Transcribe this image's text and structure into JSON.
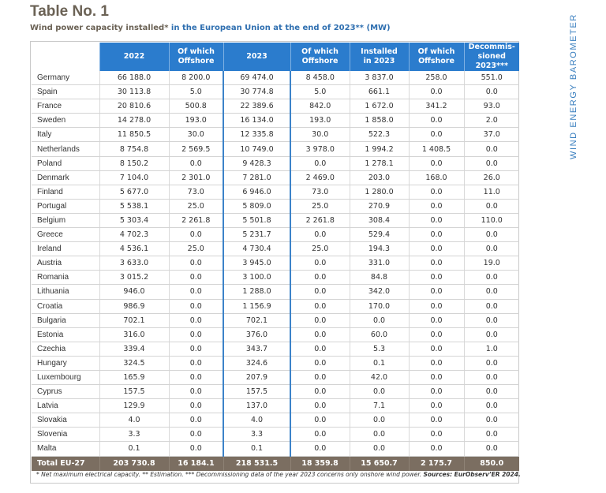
{
  "header": {
    "title": "Table No. 1",
    "subtitle_start": "Wind power capacity installed*",
    "subtitle_highlight": " in the European Union at the end of 2023** (MW)"
  },
  "sidebar_label": "WIND ENERGY BAROMETER",
  "columns": {
    "c2022": "2022",
    "off1_a": "Of which",
    "off1_b": "Offshore",
    "c2023": "2023",
    "off2_a": "Of which",
    "off2_b": "Offshore",
    "inst_a": "Installed",
    "inst_b": "in 2023",
    "off3_a": "Of which",
    "off3_b": "Offshore",
    "dec_a": "Decommis-",
    "dec_b": "sioned 2023***"
  },
  "rows": [
    {
      "country": "Germany",
      "v2022": "66 188.0",
      "off2022": "8 200.0",
      "v2023": "69 474.0",
      "off2023": "8 458.0",
      "installed": "3 837.0",
      "offInst": "258.0",
      "decom": "551.0"
    },
    {
      "country": "Spain",
      "v2022": "30 113.8",
      "off2022": "5.0",
      "v2023": "30 774.8",
      "off2023": "5.0",
      "installed": "661.1",
      "offInst": "0.0",
      "decom": "0.0"
    },
    {
      "country": "France",
      "v2022": "20 810.6",
      "off2022": "500.8",
      "v2023": "22 389.6",
      "off2023": "842.0",
      "installed": "1 672.0",
      "offInst": "341.2",
      "decom": "93.0"
    },
    {
      "country": "Sweden",
      "v2022": "14 278.0",
      "off2022": "193.0",
      "v2023": "16 134.0",
      "off2023": "193.0",
      "installed": "1 858.0",
      "offInst": "0.0",
      "decom": "2.0"
    },
    {
      "country": "Italy",
      "v2022": "11 850.5",
      "off2022": "30.0",
      "v2023": "12 335.8",
      "off2023": "30.0",
      "installed": "522.3",
      "offInst": "0.0",
      "decom": "37.0"
    },
    {
      "country": "Netherlands",
      "v2022": "8 754.8",
      "off2022": "2 569.5",
      "v2023": "10 749.0",
      "off2023": "3 978.0",
      "installed": "1 994.2",
      "offInst": "1 408.5",
      "decom": "0.0"
    },
    {
      "country": "Poland",
      "v2022": "8 150.2",
      "off2022": "0.0",
      "v2023": "9 428.3",
      "off2023": "0.0",
      "installed": "1 278.1",
      "offInst": "0.0",
      "decom": "0.0"
    },
    {
      "country": "Denmark",
      "v2022": "7 104.0",
      "off2022": "2 301.0",
      "v2023": "7 281.0",
      "off2023": "2 469.0",
      "installed": "203.0",
      "offInst": "168.0",
      "decom": "26.0"
    },
    {
      "country": "Finland",
      "v2022": "5 677.0",
      "off2022": "73.0",
      "v2023": "6 946.0",
      "off2023": "73.0",
      "installed": "1 280.0",
      "offInst": "0.0",
      "decom": "11.0"
    },
    {
      "country": "Portugal",
      "v2022": "5 538.1",
      "off2022": "25.0",
      "v2023": "5 809.0",
      "off2023": "25.0",
      "installed": "270.9",
      "offInst": "0.0",
      "decom": "0.0"
    },
    {
      "country": "Belgium",
      "v2022": "5 303.4",
      "off2022": "2 261.8",
      "v2023": "5 501.8",
      "off2023": "2 261.8",
      "installed": "308.4",
      "offInst": "0.0",
      "decom": "110.0"
    },
    {
      "country": "Greece",
      "v2022": "4 702.3",
      "off2022": "0.0",
      "v2023": "5 231.7",
      "off2023": "0.0",
      "installed": "529.4",
      "offInst": "0.0",
      "decom": "0.0"
    },
    {
      "country": "Ireland",
      "v2022": "4 536.1",
      "off2022": "25.0",
      "v2023": "4 730.4",
      "off2023": "25.0",
      "installed": "194.3",
      "offInst": "0.0",
      "decom": "0.0"
    },
    {
      "country": "Austria",
      "v2022": "3 633.0",
      "off2022": "0.0",
      "v2023": "3 945.0",
      "off2023": "0.0",
      "installed": "331.0",
      "offInst": "0.0",
      "decom": "19.0"
    },
    {
      "country": "Romania",
      "v2022": "3 015.2",
      "off2022": "0.0",
      "v2023": "3 100.0",
      "off2023": "0.0",
      "installed": "84.8",
      "offInst": "0.0",
      "decom": "0.0"
    },
    {
      "country": "Lithuania",
      "v2022": "946.0",
      "off2022": "0.0",
      "v2023": "1 288.0",
      "off2023": "0.0",
      "installed": "342.0",
      "offInst": "0.0",
      "decom": "0.0"
    },
    {
      "country": "Croatia",
      "v2022": "986.9",
      "off2022": "0.0",
      "v2023": "1 156.9",
      "off2023": "0.0",
      "installed": "170.0",
      "offInst": "0.0",
      "decom": "0.0"
    },
    {
      "country": "Bulgaria",
      "v2022": "702.1",
      "off2022": "0.0",
      "v2023": "702.1",
      "off2023": "0.0",
      "installed": "0.0",
      "offInst": "0.0",
      "decom": "0.0"
    },
    {
      "country": "Estonia",
      "v2022": "316.0",
      "off2022": "0.0",
      "v2023": "376.0",
      "off2023": "0.0",
      "installed": "60.0",
      "offInst": "0.0",
      "decom": "0.0"
    },
    {
      "country": "Czechia",
      "v2022": "339.4",
      "off2022": "0.0",
      "v2023": "343.7",
      "off2023": "0.0",
      "installed": "5.3",
      "offInst": "0.0",
      "decom": "1.0"
    },
    {
      "country": "Hungary",
      "v2022": "324.5",
      "off2022": "0.0",
      "v2023": "324.6",
      "off2023": "0.0",
      "installed": "0.1",
      "offInst": "0.0",
      "decom": "0.0"
    },
    {
      "country": "Luxembourg",
      "v2022": "165.9",
      "off2022": "0.0",
      "v2023": "207.9",
      "off2023": "0.0",
      "installed": "42.0",
      "offInst": "0.0",
      "decom": "0.0"
    },
    {
      "country": "Cyprus",
      "v2022": "157.5",
      "off2022": "0.0",
      "v2023": "157.5",
      "off2023": "0.0",
      "installed": "0.0",
      "offInst": "0.0",
      "decom": "0.0"
    },
    {
      "country": "Latvia",
      "v2022": "129.9",
      "off2022": "0.0",
      "v2023": "137.0",
      "off2023": "0.0",
      "installed": "7.1",
      "offInst": "0.0",
      "decom": "0.0"
    },
    {
      "country": "Slovakia",
      "v2022": "4.0",
      "off2022": "0.0",
      "v2023": "4.0",
      "off2023": "0.0",
      "installed": "0.0",
      "offInst": "0.0",
      "decom": "0.0"
    },
    {
      "country": "Slovenia",
      "v2022": "3.3",
      "off2022": "0.0",
      "v2023": "3.3",
      "off2023": "0.0",
      "installed": "0.0",
      "offInst": "0.0",
      "decom": "0.0"
    },
    {
      "country": "Malta",
      "v2022": "0.1",
      "off2022": "0.0",
      "v2023": "0.1",
      "off2023": "0.0",
      "installed": "0.0",
      "offInst": "0.0",
      "decom": "0.0"
    }
  ],
  "total": {
    "country": "Total EU-27",
    "v2022": "203 730.8",
    "off2022": "16 184.1",
    "v2023": "218 531.5",
    "off2023": "18 359.8",
    "installed": "15 650.7",
    "offInst": "2 175.7",
    "decom": "850.0"
  },
  "footnote": {
    "text": "* Net maximum electrical capacity. ** Estimation. *** Decommissioning data of the year 2023 concerns only onshore wind power. ",
    "source": "Sources: EurObserv’ER 2024."
  },
  "colors": {
    "header_blue": "#2b7ccd",
    "total_brown": "#7b6e61",
    "title_brown": "#6b6255",
    "accent_blue": "#2f6fb0"
  }
}
